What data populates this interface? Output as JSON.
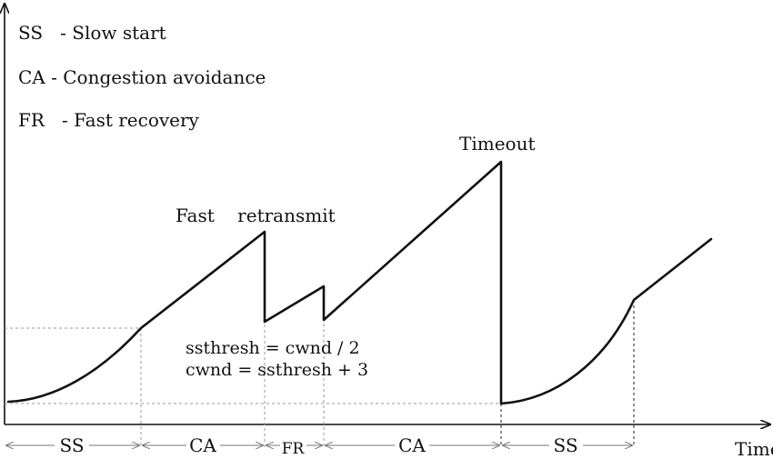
{
  "legend": {
    "ss": "SS   - Slow start",
    "ca": "CA - Congestion avoidance",
    "fr": "FR   - Fast recovery"
  },
  "annotations": {
    "fast_retransmit": "Fast    retransmit",
    "timeout": "Timeout",
    "eq1": "ssthresh = cwnd / 2",
    "eq2": "cwnd = ssthresh + 3"
  },
  "axis": {
    "x_label": "Time"
  },
  "phases": [
    {
      "label": "SS"
    },
    {
      "label": "CA"
    },
    {
      "label": "FR"
    },
    {
      "label": "CA"
    },
    {
      "label": "SS"
    }
  ]
}
